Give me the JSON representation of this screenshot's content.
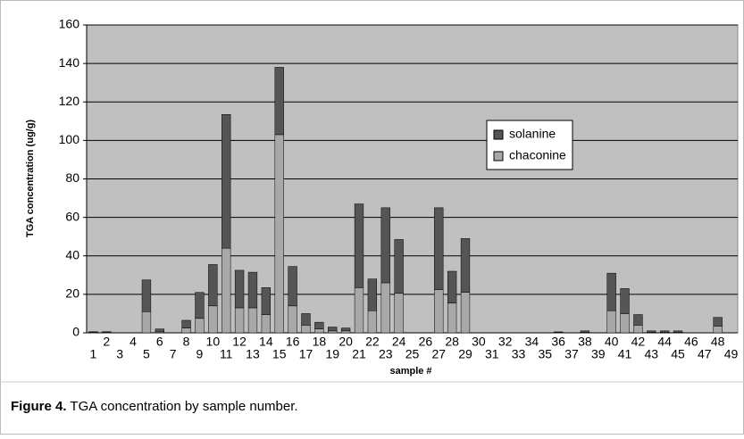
{
  "chart_data": {
    "type": "stacked_bar",
    "x_label": "sample #",
    "y_label": "TGA concentration (ug/g)",
    "caption_label": "Figure 4.",
    "caption": "TGA concentration by sample number.",
    "categories": [
      "1",
      "2",
      "3",
      "4",
      "5",
      "6",
      "7",
      "8",
      "9",
      "10",
      "11",
      "12",
      "13",
      "14",
      "15",
      "16",
      "17",
      "18",
      "19",
      "20",
      "21",
      "22",
      "23",
      "24",
      "25",
      "26",
      "27",
      "28",
      "29",
      "30",
      "31",
      "32",
      "33",
      "34",
      "35",
      "36",
      "37",
      "38",
      "39",
      "40",
      "41",
      "42",
      "43",
      "44",
      "45",
      "46",
      "47",
      "48",
      "49"
    ],
    "series": [
      {
        "name": "chaconine",
        "color": "#a8a8a8",
        "values": [
          0.3,
          0.3,
          0,
          0,
          11,
          0.5,
          0,
          2.5,
          7.5,
          14,
          44,
          13,
          13,
          9.5,
          103,
          14,
          4,
          2,
          1,
          1,
          23.5,
          11.5,
          26,
          20.5,
          0,
          0,
          22.5,
          15.5,
          21,
          0,
          0,
          0,
          0,
          0,
          0,
          0.2,
          0,
          0.3,
          0,
          11.5,
          10,
          4,
          0.3,
          0.3,
          0.3,
          0,
          0,
          3.5,
          0
        ]
      },
      {
        "name": "solanine",
        "color": "#555555",
        "values": [
          0.3,
          0.3,
          0,
          0,
          16.5,
          1.5,
          0,
          4,
          13.5,
          21.5,
          69.5,
          19.5,
          18.5,
          14,
          35,
          20.5,
          6,
          3.5,
          2,
          1.5,
          43.5,
          16.5,
          39,
          28,
          0,
          0,
          42.5,
          16.5,
          28,
          0,
          0,
          0,
          0,
          0,
          0,
          0.3,
          0,
          0.7,
          0,
          19.5,
          13,
          5.5,
          0.7,
          0.7,
          0.7,
          0,
          0,
          4.5,
          0
        ]
      }
    ],
    "ylim": [
      0,
      160
    ],
    "yticks": [
      0,
      20,
      40,
      60,
      80,
      100,
      120,
      140,
      160
    ],
    "grid": true,
    "plot_background": "#c0c0c0",
    "legend_position": "upper-right"
  }
}
